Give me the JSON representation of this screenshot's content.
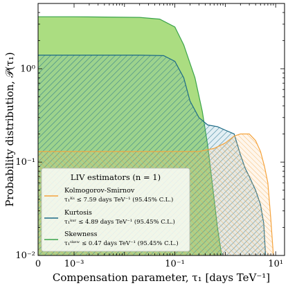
{
  "chart_data": {
    "type": "area",
    "xlabel": "Compensation parameter, τ₁ [days TeV⁻¹]",
    "ylabel": "Probability distribution, 𝒫(τ₁)",
    "x_scale": "symlog",
    "y_scale": "log",
    "xlim": [
      0,
      15
    ],
    "ylim": [
      0.01,
      5
    ],
    "x_ticks": [
      {
        "value": 0,
        "label": "0"
      },
      {
        "value": 0.001,
        "label": "10⁻³"
      },
      {
        "value": 0.1,
        "label": "10⁻¹"
      },
      {
        "value": 10,
        "label": "10¹"
      }
    ],
    "y_ticks": [
      {
        "value": 0.01,
        "label": "10⁻²"
      },
      {
        "value": 0.1,
        "label": "10⁻¹"
      },
      {
        "value": 1,
        "label": "10⁰"
      }
    ],
    "legend": {
      "placement": "lower-left",
      "title": "LIV estimators (n = 1)",
      "entries": [
        {
          "name": "Kolmogorov-Smirnov",
          "detail": "τ₁ᴷˢ ≤ 7.59 days TeV⁻¹ (95.45% C.L.)",
          "color": "#f5a33c"
        },
        {
          "name": "Kurtosis",
          "detail": "τ₁ᵏᵘʳ ≤ 4.89 days TeV⁻¹ (95.45% C.L.)",
          "color": "#1c6a86"
        },
        {
          "name": "Skewness",
          "detail": "τ₁ˢᵏᵉʷ ≤ 0.47 days TeV⁻¹ (95.45% C.L.)",
          "color": "#3aa34a"
        }
      ]
    },
    "series": [
      {
        "name": "Skewness",
        "color": "#3aa34a",
        "fill": "#a6db7a",
        "style": "solid",
        "points": [
          [
            0,
            3.6
          ],
          [
            0.001,
            3.6
          ],
          [
            0.02,
            3.55
          ],
          [
            0.05,
            3.4
          ],
          [
            0.1,
            2.8
          ],
          [
            0.15,
            1.8
          ],
          [
            0.25,
            0.8
          ],
          [
            0.35,
            0.35
          ],
          [
            0.45,
            0.15
          ],
          [
            0.55,
            0.06
          ],
          [
            0.7,
            0.02
          ],
          [
            0.85,
            0.01
          ]
        ]
      },
      {
        "name": "Kurtosis",
        "color": "#1c6a86",
        "fill": "#5fa7c3",
        "style": "hatched",
        "points": [
          [
            0,
            1.4
          ],
          [
            0.001,
            1.4
          ],
          [
            0.02,
            1.4
          ],
          [
            0.06,
            1.38
          ],
          [
            0.1,
            1.2
          ],
          [
            0.15,
            0.8
          ],
          [
            0.2,
            0.45
          ],
          [
            0.3,
            0.3
          ],
          [
            0.45,
            0.25
          ],
          [
            0.7,
            0.24
          ],
          [
            1,
            0.22
          ],
          [
            1.5,
            0.2
          ],
          [
            2,
            0.12
          ],
          [
            2.5,
            0.085
          ],
          [
            3,
            0.07
          ],
          [
            4,
            0.05
          ],
          [
            5,
            0.035
          ],
          [
            5.8,
            0.022
          ],
          [
            6.3,
            0.01
          ]
        ]
      },
      {
        "name": "Kolmogorov-Smirnov",
        "color": "#f5a33c",
        "fill": "#f7c27e",
        "style": "hatched",
        "points": [
          [
            0,
            0.13
          ],
          [
            0.02,
            0.13
          ],
          [
            0.1,
            0.13
          ],
          [
            0.3,
            0.13
          ],
          [
            0.6,
            0.14
          ],
          [
            1,
            0.16
          ],
          [
            1.5,
            0.19
          ],
          [
            2,
            0.2
          ],
          [
            3,
            0.2
          ],
          [
            4,
            0.17
          ],
          [
            5,
            0.13
          ],
          [
            6,
            0.09
          ],
          [
            7,
            0.06
          ],
          [
            8,
            0.025
          ],
          [
            9,
            0.01
          ]
        ]
      }
    ]
  }
}
